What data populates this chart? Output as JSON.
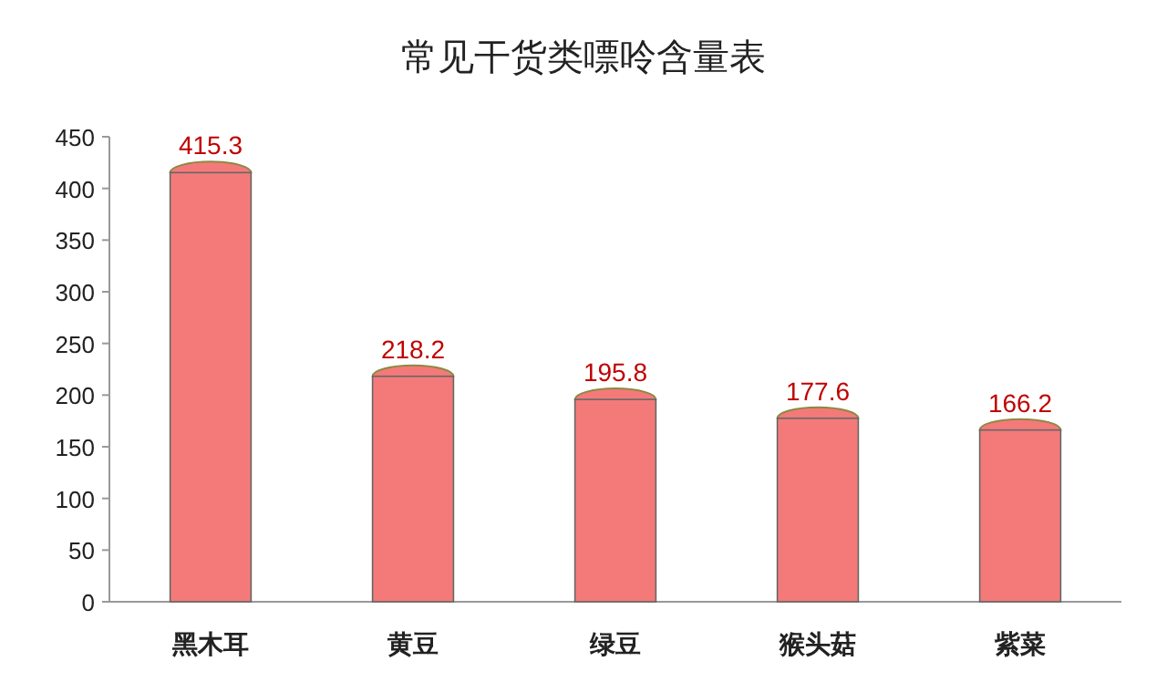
{
  "chart_data": {
    "type": "bar",
    "title": "常见干货类嘌呤含量表",
    "categories": [
      "黑木耳",
      "黄豆",
      "绿豆",
      "猴头菇",
      "紫菜"
    ],
    "series": [
      {
        "color": "#f47a7a",
        "values": [
          415.3,
          218.2,
          195.8,
          177.6,
          166.2
        ]
      }
    ],
    "ylim": [
      0,
      450
    ],
    "yticks": [
      0,
      50,
      100,
      150,
      200,
      250,
      300,
      350,
      400,
      450
    ],
    "data_labels": true,
    "grid": false
  }
}
